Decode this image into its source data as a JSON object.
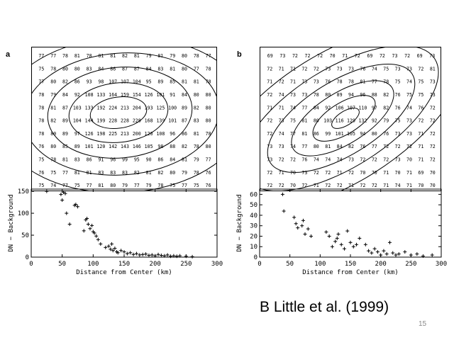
{
  "panels": [
    {
      "label": "a",
      "grid": [
        [
          "77",
          "77",
          "78",
          "81",
          "78",
          "81",
          "81",
          "82",
          "81",
          "79",
          "81",
          "79",
          "80",
          "78",
          "77"
        ],
        [
          "75",
          "78",
          "80",
          "80",
          "83",
          "84",
          "86",
          "87",
          "87",
          "84",
          "83",
          "81",
          "80",
          "77",
          "78"
        ],
        [
          "77",
          "80",
          "82",
          "86",
          "93",
          "98",
          "107",
          "107",
          "104",
          "95",
          "89",
          "85",
          "81",
          "81",
          "78"
        ],
        [
          "78",
          "79",
          "84",
          "92",
          "108",
          "133",
          "164",
          "159",
          "154",
          "126",
          "101",
          "91",
          "84",
          "80",
          "80"
        ],
        [
          "78",
          "81",
          "87",
          "103",
          "133",
          "192",
          "224",
          "213",
          "204",
          "193",
          "125",
          "100",
          "89",
          "82",
          "80"
        ],
        [
          "78",
          "82",
          "89",
          "104",
          "144",
          "199",
          "228",
          "228",
          "228",
          "168",
          "139",
          "101",
          "87",
          "83",
          "80"
        ],
        [
          "78",
          "80",
          "89",
          "97",
          "126",
          "198",
          "225",
          "213",
          "200",
          "120",
          "108",
          "96",
          "86",
          "81",
          "78"
        ],
        [
          "76",
          "80",
          "85",
          "89",
          "101",
          "120",
          "142",
          "143",
          "146",
          "105",
          "98",
          "88",
          "82",
          "78",
          "80"
        ],
        [
          "75",
          "78",
          "81",
          "83",
          "86",
          "91",
          "96",
          "99",
          "95",
          "90",
          "86",
          "84",
          "81",
          "79",
          "77"
        ],
        [
          "76",
          "75",
          "77",
          "81",
          "81",
          "83",
          "83",
          "83",
          "82",
          "81",
          "82",
          "80",
          "79",
          "78",
          "76"
        ],
        [
          "75",
          "74",
          "77",
          "75",
          "77",
          "81",
          "80",
          "79",
          "77",
          "79",
          "78",
          "75",
          "77",
          "75",
          "76"
        ]
      ],
      "plot": {
        "xlabel": "Distance from Center (km)",
        "ylabel": "DN − Background",
        "xticks": [
          "0",
          "50",
          "100",
          "150",
          "200",
          "250",
          "300"
        ],
        "yticks": [
          "0",
          "50",
          "100",
          "150"
        ],
        "xlim": [
          0,
          300
        ],
        "ylim": [
          0,
          155
        ]
      }
    },
    {
      "label": "b",
      "grid": [
        [
          "69",
          "73",
          "72",
          "72",
          "72",
          "70",
          "71",
          "72",
          "69",
          "72",
          "73",
          "72",
          "69",
          "73"
        ],
        [
          "72",
          "71",
          "71",
          "72",
          "72",
          "73",
          "73",
          "73",
          "76",
          "74",
          "75",
          "73",
          "73",
          "72",
          "81"
        ],
        [
          "71",
          "72",
          "71",
          "73",
          "73",
          "76",
          "78",
          "78",
          "81",
          "77",
          "78",
          "75",
          "74",
          "75",
          "73"
        ],
        [
          "72",
          "74",
          "73",
          "73",
          "78",
          "80",
          "89",
          "94",
          "96",
          "88",
          "82",
          "76",
          "75",
          "75",
          "73"
        ],
        [
          "71",
          "71",
          "74",
          "77",
          "84",
          "92",
          "106",
          "107",
          "110",
          "97",
          "82",
          "76",
          "74",
          "76",
          "72"
        ],
        [
          "72",
          "73",
          "75",
          "81",
          "80",
          "103",
          "116",
          "129",
          "132",
          "92",
          "79",
          "75",
          "73",
          "72",
          "72"
        ],
        [
          "72",
          "74",
          "77",
          "81",
          "86",
          "99",
          "101",
          "105",
          "94",
          "80",
          "76",
          "73",
          "73",
          "71",
          "72"
        ],
        [
          "73",
          "73",
          "74",
          "77",
          "80",
          "81",
          "84",
          "82",
          "76",
          "77",
          "72",
          "72",
          "72",
          "71",
          "72"
        ],
        [
          "73",
          "72",
          "72",
          "76",
          "74",
          "74",
          "74",
          "73",
          "72",
          "72",
          "72",
          "73",
          "70",
          "71",
          "72"
        ],
        [
          "72",
          "71",
          "70",
          "73",
          "72",
          "72",
          "71",
          "72",
          "70",
          "70",
          "71",
          "70",
          "71",
          "69",
          "70"
        ],
        [
          "72",
          "72",
          "70",
          "72",
          "71",
          "72",
          "72",
          "71",
          "72",
          "72",
          "71",
          "74",
          "71",
          "70",
          "70"
        ]
      ],
      "plot": {
        "xlabel": "Distance from Center (km)",
        "ylabel": "DN − Background",
        "xticks": [
          "0",
          "50",
          "100",
          "150",
          "200",
          "250",
          "300"
        ],
        "yticks": [
          "0",
          "10",
          "20",
          "30",
          "40",
          "50",
          "60"
        ],
        "xlim": [
          0,
          300
        ],
        "ylim": [
          0,
          65
        ]
      }
    }
  ],
  "chart_data": [
    {
      "type": "scatter",
      "xlabel": "Distance from Center (km)",
      "ylabel": "DN − Background",
      "xlim": [
        0,
        300
      ],
      "ylim": [
        0,
        155
      ],
      "x": [
        25,
        48,
        50,
        52,
        55,
        57,
        62,
        70,
        72,
        75,
        85,
        88,
        90,
        92,
        95,
        98,
        100,
        102,
        105,
        108,
        112,
        120,
        125,
        128,
        130,
        132,
        135,
        138,
        140,
        145,
        150,
        155,
        160,
        165,
        170,
        175,
        180,
        185,
        190,
        195,
        200,
        205,
        210,
        215,
        220,
        225,
        230,
        235,
        240,
        250,
        260
      ],
      "y": [
        150,
        143,
        130,
        148,
        145,
        100,
        75,
        118,
        120,
        115,
        60,
        85,
        88,
        75,
        65,
        72,
        58,
        55,
        48,
        40,
        30,
        22,
        25,
        18,
        30,
        15,
        20,
        12,
        10,
        15,
        12,
        8,
        10,
        6,
        8,
        5,
        6,
        7,
        4,
        5,
        3,
        6,
        4,
        3,
        5,
        2,
        3,
        2,
        3,
        2,
        1
      ]
    },
    {
      "type": "scatter",
      "xlabel": "Distance from Center (km)",
      "ylabel": "DN − Background",
      "xlim": [
        0,
        300
      ],
      "ylim": [
        0,
        65
      ],
      "x": [
        38,
        40,
        57,
        60,
        63,
        70,
        72,
        75,
        80,
        85,
        110,
        115,
        120,
        125,
        128,
        130,
        135,
        140,
        145,
        150,
        155,
        160,
        165,
        175,
        180,
        185,
        190,
        195,
        200,
        205,
        210,
        215,
        220,
        225,
        230,
        240,
        250,
        260,
        270,
        285
      ],
      "y": [
        60,
        44,
        38,
        32,
        28,
        30,
        35,
        22,
        27,
        20,
        24,
        20,
        10,
        15,
        18,
        22,
        12,
        8,
        25,
        14,
        10,
        12,
        18,
        12,
        6,
        4,
        8,
        5,
        2,
        6,
        3,
        14,
        4,
        2,
        3,
        5,
        2,
        3,
        1,
        2
      ]
    }
  ],
  "caption": "B Little et al. (1999)",
  "page_number": "15"
}
